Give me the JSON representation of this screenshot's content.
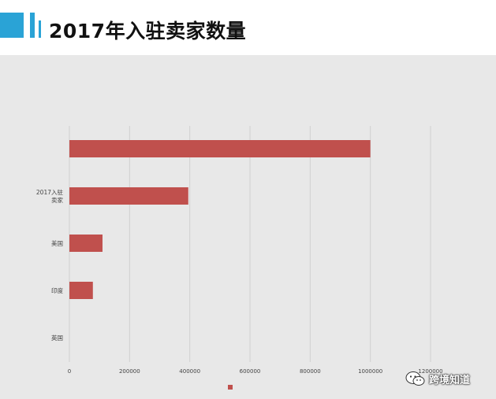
{
  "header": {
    "title": "2017年入驻卖家数量"
  },
  "chart_data": {
    "type": "bar",
    "orientation": "horizontal",
    "categories": [
      "",
      "2017入驻卖家",
      "美国",
      "印度",
      "英国"
    ],
    "values": [
      1000000,
      395000,
      110000,
      78000,
      0
    ],
    "xlim": [
      0,
      1200000
    ],
    "xticks": [
      "0",
      "200000",
      "400000",
      "600000",
      "800000",
      "1000000",
      "1200000"
    ],
    "grid": true,
    "legend": "bottom",
    "bar_color": "#c0504d"
  },
  "watermark": {
    "text": "跨境知道",
    "icon": "wechat-icon"
  }
}
